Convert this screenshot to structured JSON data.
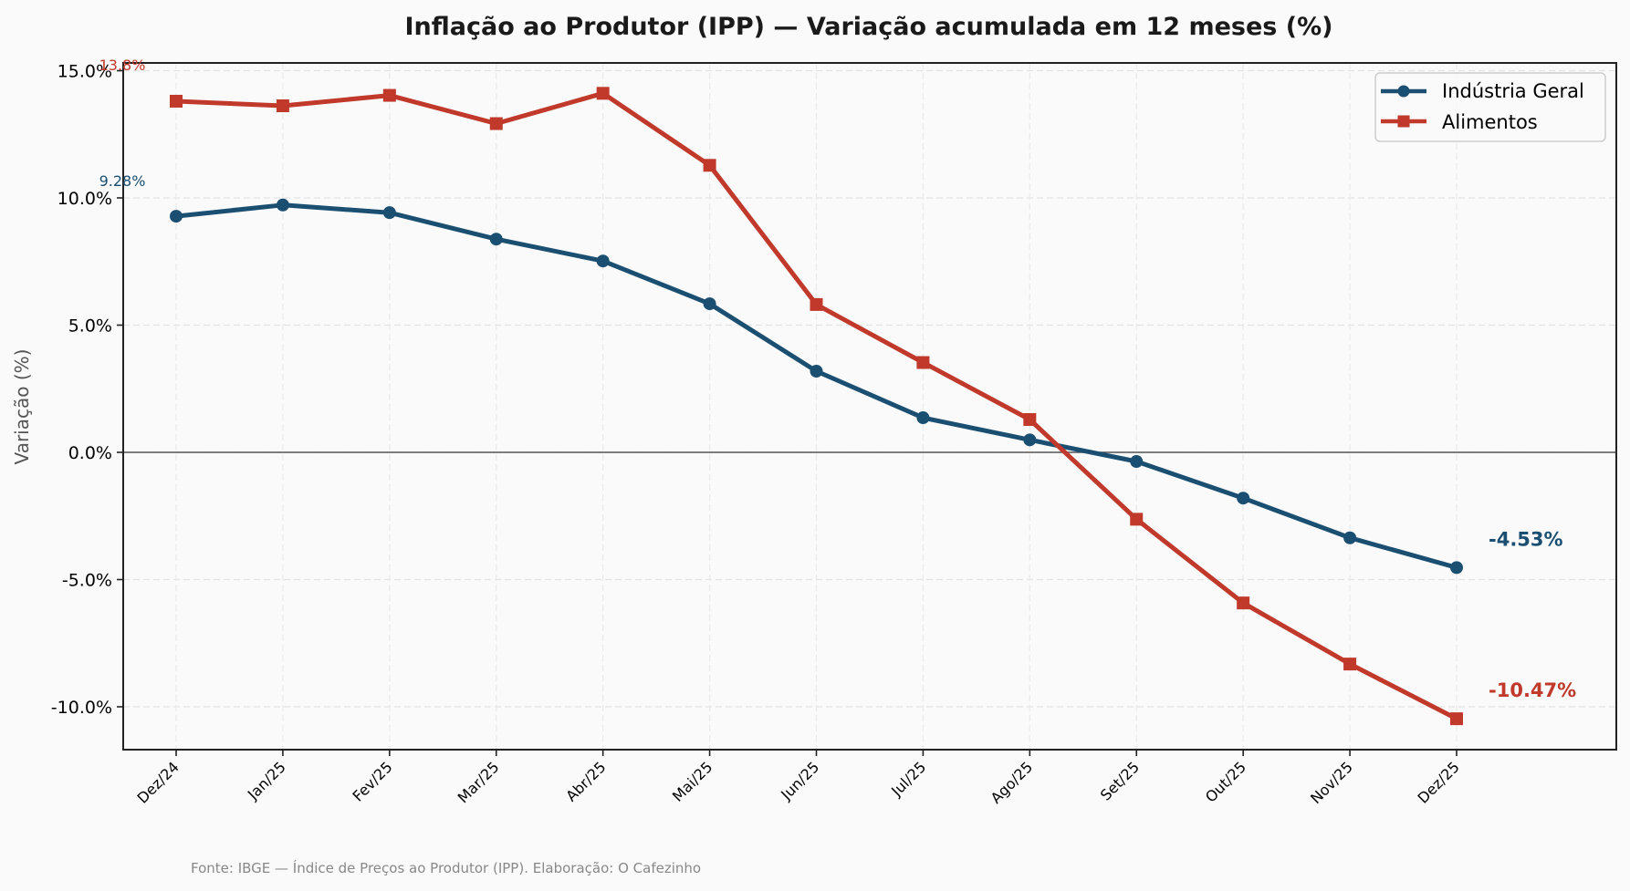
{
  "chart_data": {
    "type": "line",
    "title": "Inflação ao Produtor (IPP) — Variação acumulada em 12 meses (%)",
    "xlabel": "",
    "ylabel": "Variação (%)",
    "ylim": [
      -11.6,
      15.3
    ],
    "yticks": [
      15,
      10,
      5,
      0,
      -5,
      -10
    ],
    "ytick_labels": [
      "15.0%",
      "10.0%",
      "5.0%",
      "0.0%",
      "-5.0%",
      "-10.0%"
    ],
    "grid": true,
    "zero_line": true,
    "legend_position": "top-right",
    "categories": [
      "Dez/24",
      "Jan/25",
      "Fev/25",
      "Mar/25",
      "Abr/25",
      "Mai/25",
      "Jun/25",
      "Jul/25",
      "Ago/25",
      "Set/25",
      "Out/25",
      "Nov/25",
      "Dez/25"
    ],
    "series": [
      {
        "name": "Indústria Geral",
        "color": "#1b4f72",
        "marker": "circle",
        "values": [
          9.28,
          9.72,
          9.42,
          8.38,
          7.52,
          5.84,
          3.19,
          1.36,
          0.49,
          -0.36,
          -1.8,
          -3.36,
          -4.53
        ],
        "first_label": "9.28%",
        "last_label": "-4.53%"
      },
      {
        "name": "Alimentos",
        "color": "#c0392b",
        "marker": "square",
        "values": [
          13.8,
          13.62,
          14.03,
          12.92,
          14.11,
          11.28,
          5.81,
          3.53,
          1.29,
          -2.63,
          -5.92,
          -8.32,
          -10.47
        ],
        "first_label": "13.8%",
        "last_label": "-10.47%"
      }
    ],
    "source_note": "Fonte: IBGE — Índice de Preços ao Produtor (IPP). Elaboração: O Cafezinho"
  }
}
